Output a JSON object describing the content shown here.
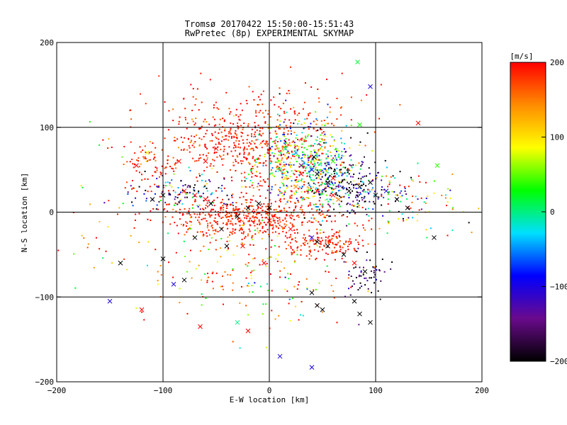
{
  "chart_data": {
    "type": "scatter",
    "title": "Tromsø 20170422 15:50:00-15:51:43",
    "subtitle": "RwPretec (8p) EXPERIMENTAL SKYMAP",
    "xlabel": "E-W location [km]",
    "ylabel": "N-S location [km]",
    "xlim": [
      -200,
      200
    ],
    "ylim": [
      -200,
      200
    ],
    "x_ticks": [
      -200,
      -100,
      0,
      100,
      200
    ],
    "y_ticks": [
      -200,
      -100,
      0,
      100,
      200
    ],
    "grid": true,
    "grid_lines_x": [
      -100,
      0,
      100
    ],
    "grid_lines_y": [
      -100,
      0,
      100
    ],
    "color_variable": "line-of-sight velocity",
    "colorbar": {
      "label": "[m/s]",
      "min": -200,
      "max": 200,
      "ticks": [
        200,
        100,
        0,
        -100,
        -200
      ],
      "colormap": "black-purple-blue-cyan-green-yellow-orange-red",
      "stops": [
        "#000000",
        "#6a0a8c",
        "#0000ff",
        "#00e0ff",
        "#00ff00",
        "#ffff00",
        "#ff8c00",
        "#ff0000"
      ]
    },
    "marker_types": [
      "cross",
      "dot"
    ],
    "series": [
      {
        "name": "",
        "marker": "cross",
        "x": [
          -125,
          -85,
          -80,
          -70,
          -60,
          -55,
          -45,
          -30,
          -20,
          -10,
          0,
          10,
          15,
          25,
          30,
          40,
          45,
          55,
          60,
          75,
          85,
          95,
          100,
          110,
          120,
          130,
          -110,
          -100,
          -70,
          -40,
          0,
          20,
          40,
          45,
          55,
          90,
          10,
          15,
          25,
          -60,
          -5,
          -25,
          40,
          45,
          50,
          85,
          95,
          80,
          60,
          70,
          -140,
          -100,
          -150,
          -90,
          -80,
          155,
          83,
          85,
          95,
          -120,
          -115,
          -50,
          30,
          60,
          65,
          140,
          158,
          45,
          42,
          80,
          -65,
          -30,
          -20,
          10,
          40
        ],
        "y": [
          55,
          60,
          25,
          20,
          15,
          10,
          -20,
          -5,
          5,
          10,
          5,
          60,
          75,
          70,
          55,
          50,
          45,
          35,
          20,
          25,
          30,
          35,
          20,
          25,
          15,
          5,
          15,
          20,
          -30,
          -40,
          -10,
          -20,
          -30,
          -35,
          -40,
          -70,
          50,
          40,
          30,
          60,
          -60,
          -40,
          -95,
          -110,
          -115,
          -120,
          -130,
          -105,
          40,
          -50,
          -60,
          -55,
          -105,
          -85,
          -80,
          -30,
          177,
          103,
          148,
          -115,
          70,
          75,
          45,
          60,
          15,
          105,
          55,
          25,
          65,
          -60,
          -135,
          -130,
          -140,
          -170,
          -183
        ],
        "v": [
          200,
          200,
          200,
          200,
          200,
          -200,
          -200,
          -200,
          -200,
          -200,
          -200,
          100,
          0,
          -50,
          -150,
          -100,
          -200,
          -200,
          200,
          -200,
          -200,
          -200,
          -200,
          -100,
          -200,
          -200,
          -200,
          -200,
          -200,
          -200,
          200,
          200,
          -100,
          -200,
          -200,
          -200,
          0,
          100,
          150,
          200,
          200,
          200,
          -200,
          -200,
          -200,
          -200,
          -200,
          -200,
          200,
          -200,
          -200,
          -200,
          -100,
          -100,
          -200,
          -200,
          20,
          30,
          -100,
          200,
          80,
          200,
          200,
          40,
          150,
          200,
          40,
          200,
          -200,
          200,
          200,
          0,
          200,
          -100,
          -100
        ]
      },
      {
        "name": "",
        "marker": "dot",
        "clusters": [
          {
            "cx": -20,
            "cy": 80,
            "sx": 35,
            "sy": 25,
            "n": 480,
            "vmean": 190,
            "vspread": 25
          },
          {
            "cx": -20,
            "cy": -5,
            "sx": 40,
            "sy": 12,
            "n": 520,
            "vmean": 190,
            "vspread": 20
          },
          {
            "cx": 30,
            "cy": 60,
            "sx": 20,
            "sy": 25,
            "n": 420,
            "vmean": 60,
            "vspread": 120
          },
          {
            "cx": 55,
            "cy": 40,
            "sx": 15,
            "sy": 25,
            "n": 220,
            "vmean": -20,
            "vspread": 100
          },
          {
            "cx": 50,
            "cy": -38,
            "sx": 20,
            "sy": 8,
            "n": 150,
            "vmean": 190,
            "vspread": 20
          },
          {
            "cx": 80,
            "cy": 30,
            "sx": 20,
            "sy": 18,
            "n": 150,
            "vmean": -170,
            "vspread": 60
          },
          {
            "cx": 90,
            "cy": -75,
            "sx": 10,
            "sy": 12,
            "n": 60,
            "vmean": -170,
            "vspread": 40
          },
          {
            "cx": -110,
            "cy": 55,
            "sx": 15,
            "sy": 15,
            "n": 80,
            "vmean": 190,
            "vspread": 20
          },
          {
            "cx": -80,
            "cy": 25,
            "sx": 25,
            "sy": 12,
            "n": 120,
            "vmean": -120,
            "vspread": 120
          },
          {
            "cx": 120,
            "cy": 15,
            "sx": 20,
            "sy": 15,
            "n": 80,
            "vmean": 60,
            "vspread": 140
          },
          {
            "cx": -30,
            "cy": -60,
            "sx": 50,
            "sy": 35,
            "n": 150,
            "vmean": 150,
            "vspread": 80
          },
          {
            "cx": 20,
            "cy": -80,
            "sx": 30,
            "sy": 30,
            "n": 70,
            "vmean": 120,
            "vspread": 120
          },
          {
            "cx": -150,
            "cy": 0,
            "sx": 30,
            "sy": 60,
            "n": 50,
            "vmean": 160,
            "vspread": 80
          },
          {
            "cx": 0,
            "cy": 130,
            "sx": 60,
            "sy": 20,
            "n": 60,
            "vmean": 190,
            "vspread": 20
          },
          {
            "cx": 160,
            "cy": 10,
            "sx": 20,
            "sy": 20,
            "n": 30,
            "vmean": 80,
            "vspread": 120
          }
        ]
      }
    ]
  }
}
